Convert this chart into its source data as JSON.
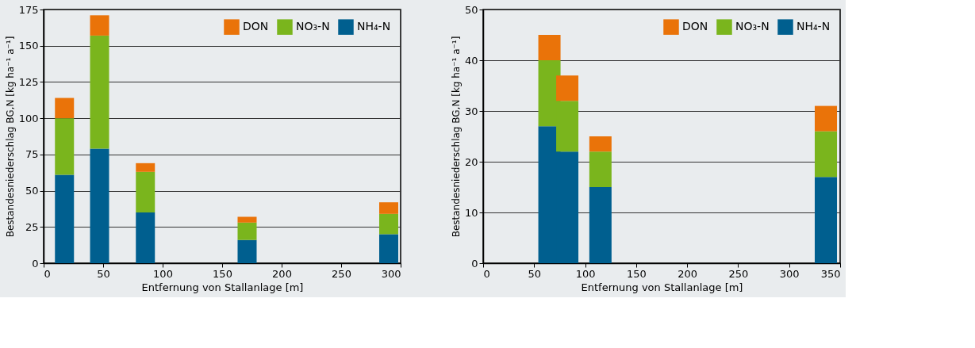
{
  "chart_data": [
    {
      "type": "bar",
      "stacked": true,
      "xlabel": "Entfernung von Stallanlage [m]",
      "ylabel": "Bestandesniederschlag BG,N [kg ha⁻¹ a⁻¹]",
      "x": [
        17.5,
        47,
        85.5,
        171,
        290
      ],
      "series": [
        {
          "name": "NH₄-N",
          "color": "#005f8f",
          "values": [
            61,
            79,
            35,
            16,
            20
          ]
        },
        {
          "name": "NO₃-N",
          "color": "#7ab51d",
          "values": [
            39,
            78,
            28,
            12,
            14
          ]
        },
        {
          "name": "DON",
          "color": "#ea7309",
          "values": [
            14,
            14,
            6,
            4,
            8
          ]
        }
      ],
      "xlim": [
        0,
        300
      ],
      "xticks": [
        0,
        50,
        100,
        150,
        200,
        250,
        300
      ],
      "ylim": [
        0,
        175
      ],
      "yticks": [
        0,
        25,
        50,
        75,
        100,
        125,
        150,
        175
      ],
      "grid": "y",
      "legend": "top right"
    },
    {
      "type": "bar",
      "stacked": true,
      "xlabel": "Entfernung von Stallanlage [m]",
      "ylabel": "Bestandesniederschlag BG,N [kg ha⁻¹ a⁻¹]",
      "x": [
        65,
        82.5,
        115,
        336
      ],
      "series": [
        {
          "name": "NH₄-N",
          "color": "#005f8f",
          "values": [
            27,
            22,
            15,
            17
          ]
        },
        {
          "name": "NO₃-N",
          "color": "#7ab51d",
          "values": [
            13,
            10,
            7,
            9
          ]
        },
        {
          "name": "DON",
          "color": "#ea7309",
          "values": [
            5,
            5,
            3,
            5
          ]
        }
      ],
      "xlim": [
        0,
        350
      ],
      "xticks": [
        0,
        50,
        100,
        150,
        200,
        250,
        300,
        350
      ],
      "ylim": [
        0,
        50
      ],
      "yticks": [
        0,
        10,
        20,
        30,
        40,
        50
      ],
      "grid": "y",
      "legend": "top right"
    }
  ]
}
